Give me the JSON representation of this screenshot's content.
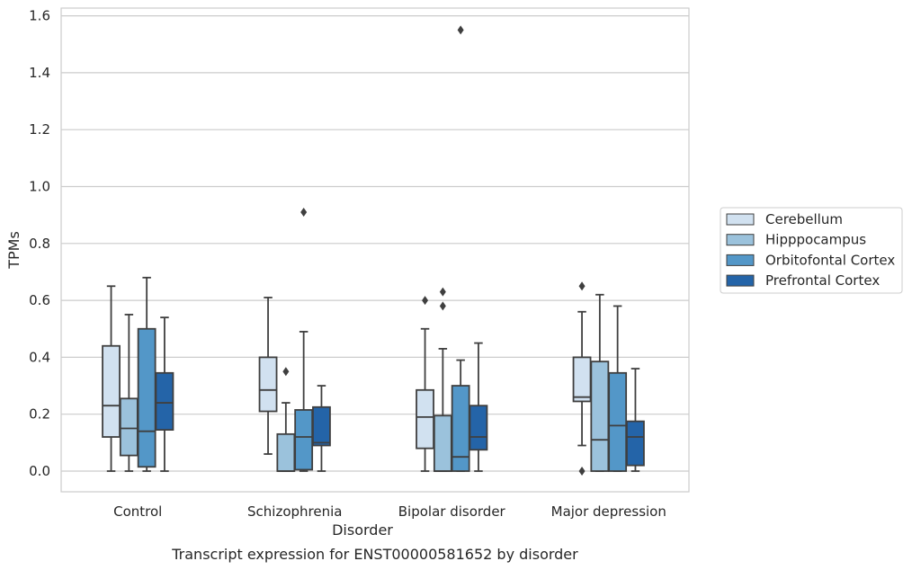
{
  "chart_data": {
    "type": "box",
    "xlabel": "Disorder",
    "ylabel": "TPMs",
    "caption": "Transcript expression for ENST00000581652 by disorder",
    "ylim": [
      -0.075,
      1.63
    ],
    "yticks": [
      "0.0",
      "0.2",
      "0.4",
      "0.6",
      "0.8",
      "1.0",
      "1.2",
      "1.4",
      "1.6"
    ],
    "ytick_values": [
      0.0,
      0.2,
      0.4,
      0.6,
      0.8,
      1.0,
      1.2,
      1.4,
      1.6
    ],
    "grid": "horizontal",
    "legend_position": "right",
    "categories": [
      "Control",
      "Schizophrenia",
      "Bipolar disorder",
      "Major depression"
    ],
    "series": [
      {
        "name": "Cerebellum",
        "color": "#d1e1f0",
        "boxes": [
          {
            "whislo": 0.0,
            "q1": 0.12,
            "med": 0.23,
            "q3": 0.44,
            "whishi": 0.65,
            "fliers": []
          },
          {
            "whislo": 0.06,
            "q1": 0.21,
            "med": 0.285,
            "q3": 0.4,
            "whishi": 0.61,
            "fliers": []
          },
          {
            "whislo": 0.0,
            "q1": 0.08,
            "med": 0.19,
            "q3": 0.285,
            "whishi": 0.5,
            "fliers": [
              0.6
            ]
          },
          {
            "whislo": 0.09,
            "q1": 0.245,
            "med": 0.26,
            "q3": 0.4,
            "whishi": 0.56,
            "fliers": [
              0.65,
              0.0
            ]
          }
        ]
      },
      {
        "name": "Hipppocampus",
        "color": "#9bc2dc",
        "boxes": [
          {
            "whislo": 0.0,
            "q1": 0.055,
            "med": 0.15,
            "q3": 0.255,
            "whishi": 0.55,
            "fliers": []
          },
          {
            "whislo": 0.0,
            "q1": 0.0,
            "med": 0.0,
            "q3": 0.13,
            "whishi": 0.24,
            "fliers": [
              0.35
            ]
          },
          {
            "whislo": 0.0,
            "q1": 0.0,
            "med": 0.0,
            "q3": 0.195,
            "whishi": 0.43,
            "fliers": [
              0.63,
              0.58
            ]
          },
          {
            "whislo": 0.0,
            "q1": 0.0,
            "med": 0.11,
            "q3": 0.385,
            "whishi": 0.62,
            "fliers": []
          }
        ]
      },
      {
        "name": "Orbitofontal Cortex",
        "color": "#5397c8",
        "boxes": [
          {
            "whislo": 0.0,
            "q1": 0.015,
            "med": 0.14,
            "q3": 0.5,
            "whishi": 0.68,
            "fliers": []
          },
          {
            "whislo": 0.0,
            "q1": 0.005,
            "med": 0.12,
            "q3": 0.215,
            "whishi": 0.49,
            "fliers": [
              0.91
            ]
          },
          {
            "whislo": 0.0,
            "q1": 0.0,
            "med": 0.05,
            "q3": 0.3,
            "whishi": 0.39,
            "fliers": [
              1.55
            ]
          },
          {
            "whislo": 0.0,
            "q1": 0.0,
            "med": 0.16,
            "q3": 0.345,
            "whishi": 0.58,
            "fliers": []
          }
        ]
      },
      {
        "name": "Prefrontal Cortex",
        "color": "#2464a8",
        "boxes": [
          {
            "whislo": 0.0,
            "q1": 0.145,
            "med": 0.24,
            "q3": 0.345,
            "whishi": 0.54,
            "fliers": []
          },
          {
            "whislo": 0.0,
            "q1": 0.09,
            "med": 0.1,
            "q3": 0.225,
            "whishi": 0.3,
            "fliers": []
          },
          {
            "whislo": 0.0,
            "q1": 0.075,
            "med": 0.12,
            "q3": 0.23,
            "whishi": 0.45,
            "fliers": []
          },
          {
            "whislo": 0.0,
            "q1": 0.02,
            "med": 0.12,
            "q3": 0.175,
            "whishi": 0.36,
            "fliers": []
          }
        ]
      }
    ]
  }
}
